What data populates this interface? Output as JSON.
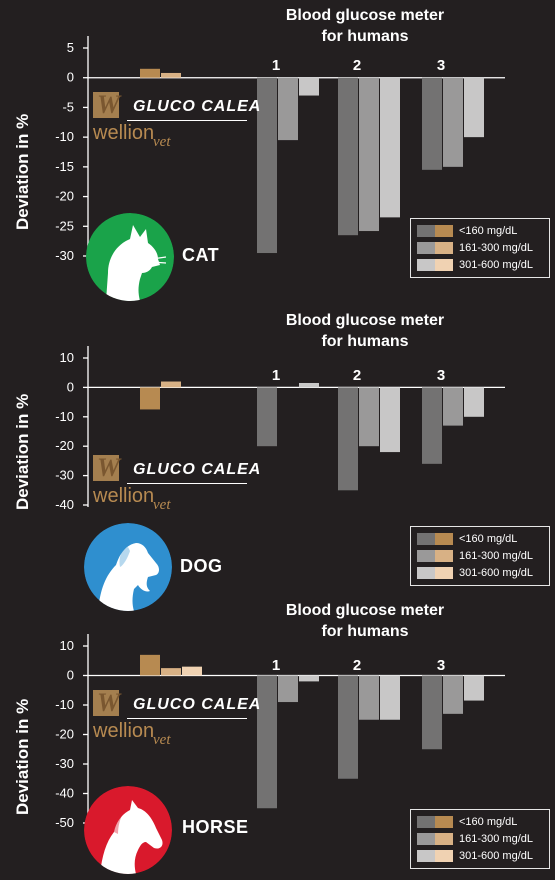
{
  "y_title": "Deviation in %",
  "heading": [
    "Blood glucose meter",
    "for humans"
  ],
  "logo": {
    "product": "GLUCO CALEA",
    "brand": "wellion",
    "sub": "vet",
    "mark": "W"
  },
  "legend": [
    "<160 mg/dL",
    "161-300 mg/dL",
    "301-600 mg/dL"
  ],
  "colors": {
    "gc": [
      "#b78a51",
      "#d8b185",
      "#f0d2b2"
    ],
    "meters": [
      "#737272",
      "#9a9999",
      "#c8c7c7"
    ],
    "cat": "#1aa34a",
    "dog": "#2f8fcf",
    "horse": "#d9192c"
  },
  "chart_data": [
    {
      "type": "bar",
      "animal": "CAT",
      "ylim": [
        -30,
        5
      ],
      "yticks": [
        5,
        0,
        -5,
        -10,
        -15,
        -20,
        -25,
        -30
      ],
      "categories": [
        "GLUCO CALEA",
        "1",
        "2",
        "3"
      ],
      "series": [
        {
          "name": "<160 mg/dL",
          "values": [
            1.5,
            -29.5,
            -26.5,
            -15.5
          ]
        },
        {
          "name": "161-300 mg/dL",
          "values": [
            0.8,
            -10.5,
            -25.8,
            -15.0
          ]
        },
        {
          "name": "301-600 mg/dL",
          "values": [
            0,
            -3.0,
            -23.5,
            -10.0
          ]
        }
      ]
    },
    {
      "type": "bar",
      "animal": "DOG",
      "ylim": [
        -40,
        10
      ],
      "yticks": [
        10,
        0,
        -10,
        -20,
        -30,
        -40
      ],
      "categories": [
        "GLUCO CALEA",
        "1",
        "2",
        "3"
      ],
      "series": [
        {
          "name": "<160 mg/dL",
          "values": [
            -7.5,
            -20,
            -35,
            -26
          ]
        },
        {
          "name": "161-300 mg/dL",
          "values": [
            2,
            0,
            -20,
            -13
          ]
        },
        {
          "name": "301-600 mg/dL",
          "values": [
            0,
            1.5,
            -22,
            -10
          ]
        }
      ]
    },
    {
      "type": "bar",
      "animal": "HORSE",
      "ylim": [
        -50,
        10
      ],
      "yticks": [
        10,
        0,
        -10,
        -20,
        -30,
        -40,
        -50
      ],
      "categories": [
        "GLUCO CALEA",
        "1",
        "2",
        "3"
      ],
      "series": [
        {
          "name": "<160 mg/dL",
          "values": [
            7,
            -45,
            -35,
            -25
          ]
        },
        {
          "name": "161-300 mg/dL",
          "values": [
            2.5,
            -9,
            -15,
            -13
          ]
        },
        {
          "name": "301-600 mg/dL",
          "values": [
            3,
            -2,
            -15,
            -8.5
          ]
        }
      ]
    }
  ]
}
